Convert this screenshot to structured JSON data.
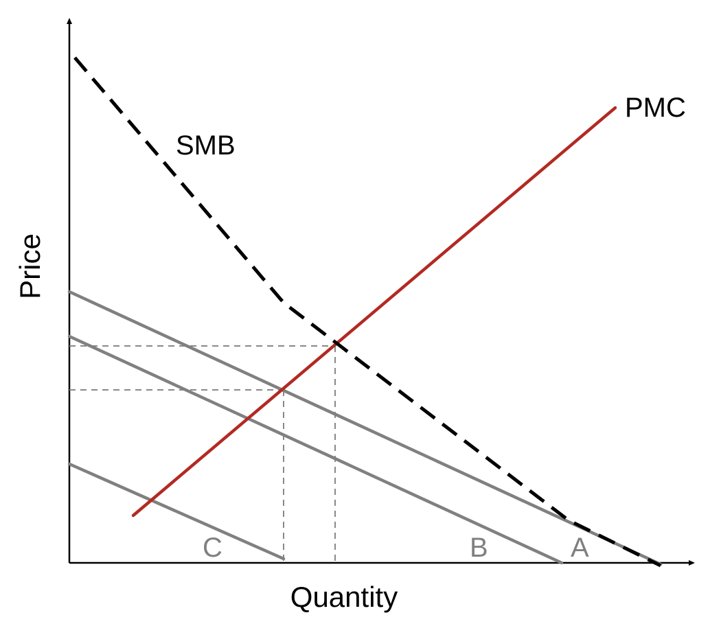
{
  "axes": {
    "x_label": "Quantity",
    "y_label": "Price"
  },
  "curves": {
    "smb": {
      "label": "SMB",
      "color": "#000000",
      "style": "dashed"
    },
    "pmc": {
      "label": "PMC",
      "color": "#b22a22",
      "style": "solid"
    },
    "demand_a": {
      "label": "A",
      "color": "#808080",
      "style": "solid"
    },
    "demand_b": {
      "label": "B",
      "color": "#808080",
      "style": "solid"
    },
    "demand_c": {
      "label": "C",
      "color": "#808080",
      "style": "solid"
    }
  },
  "guide_lines": {
    "color": "#808080",
    "style": "dashed"
  }
}
